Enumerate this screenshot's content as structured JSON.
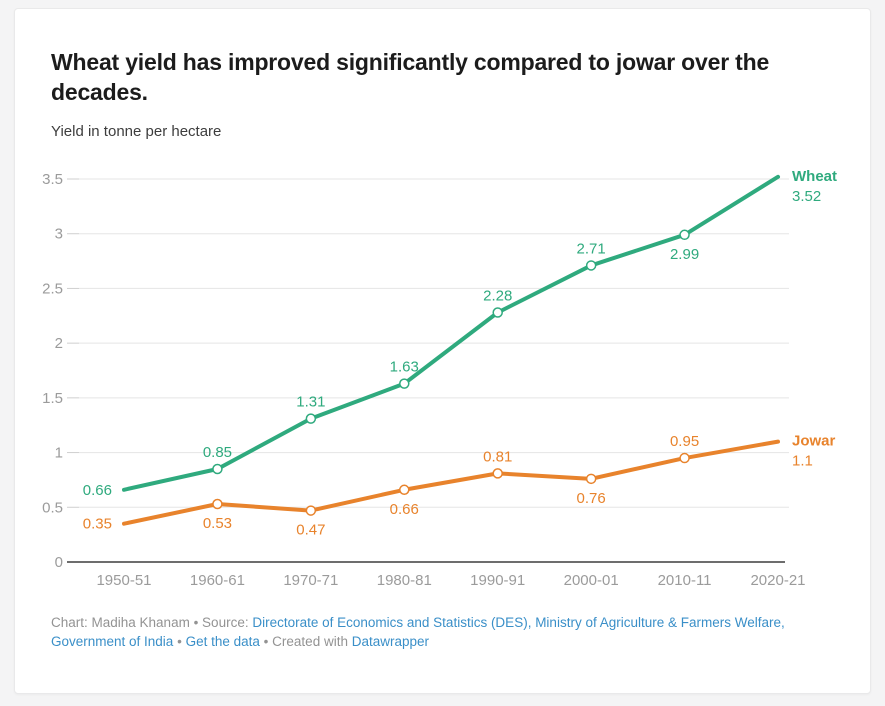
{
  "page": {
    "background_color": "#f4f4f5",
    "card_color": "#ffffff"
  },
  "header": {
    "title": "Wheat yield has improved significantly compared to jowar over the decades.",
    "subtitle": "Yield in tonne per hectare"
  },
  "chart_data": {
    "type": "line",
    "title": "Wheat yield has improved significantly compared to jowar over the decades.",
    "units_label": "Yield in tonne per hectare",
    "categories": [
      "1950-51",
      "1960-61",
      "1970-71",
      "1980-81",
      "1990-91",
      "2000-01",
      "2010-11",
      "2020-21"
    ],
    "series": [
      {
        "name": "Wheat",
        "color": "#2faa7e",
        "values": [
          0.66,
          0.85,
          1.31,
          1.63,
          2.28,
          2.71,
          2.99,
          3.52
        ],
        "end_value_label": "3.52",
        "value_labels": [
          "0.66",
          "0.85",
          "1.31",
          "1.63",
          "2.28",
          "2.71",
          "2.99",
          "3.52"
        ],
        "label_positions": [
          "left",
          "above",
          "above",
          "above",
          "above",
          "above",
          "below",
          "end"
        ]
      },
      {
        "name": "Jowar",
        "color": "#e8832c",
        "values": [
          0.35,
          0.53,
          0.47,
          0.66,
          0.81,
          0.76,
          0.95,
          1.1
        ],
        "end_value_label": "1.1",
        "value_labels": [
          "0.35",
          "0.53",
          "0.47",
          "0.66",
          "0.81",
          "0.76",
          "0.95",
          "1.1"
        ],
        "label_positions": [
          "left",
          "below",
          "below",
          "below",
          "above",
          "below",
          "above",
          "end"
        ]
      }
    ],
    "y_ticks": [
      0,
      0.5,
      1,
      1.5,
      2,
      2.5,
      3,
      3.5
    ],
    "y_tick_labels": [
      "0",
      "0.5",
      "1",
      "1.5",
      "2",
      "2.5",
      "3",
      "3.5"
    ],
    "ylim": [
      0,
      3.5
    ],
    "grid": "horizontal",
    "gridline_color": "#e5e5e5",
    "tick_color": "#cfcfcf",
    "axis_line_color": "#3d3d3d",
    "tick_label_color": "#9b9b9b",
    "legend_position": "end-of-line"
  },
  "footer": {
    "credit_prefix": "Chart: Madiha Khanam • Source:",
    "source_link": "Directorate of Economics and Statistics (DES), Ministry of Agriculture & Farmers Welfare, Government of India",
    "separator": "•",
    "get_data_label": "Get the data",
    "created_with_label": "Created with",
    "tool_name": "Datawrapper"
  }
}
